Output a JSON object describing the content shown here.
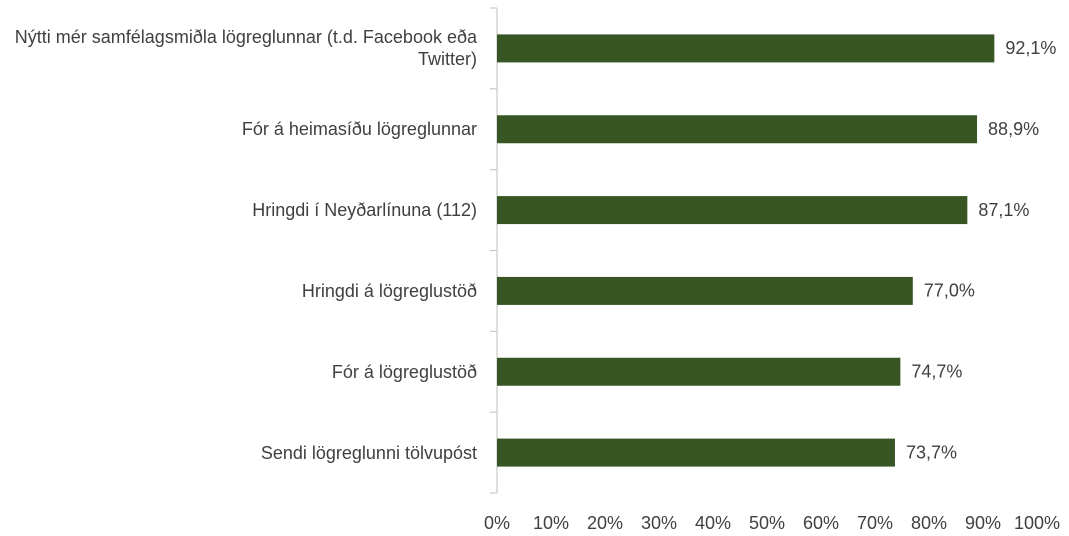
{
  "chart_data": {
    "type": "bar",
    "orientation": "horizontal",
    "categories": [
      "Nýtti mér samfélagsmiðla lögreglunnar (t.d. Facebook eða Twitter)",
      "Fór á heimasíðu lögreglunnar",
      "Hringdi í Neyðarlínuna (112)",
      "Hringdi á lögreglustöð",
      "Fór á lögreglustöð",
      "Sendi lögreglunni tölvupóst"
    ],
    "values": [
      92.1,
      88.9,
      87.1,
      77.0,
      74.7,
      73.7
    ],
    "value_labels": [
      "92,1%",
      "88,9%",
      "87,1%",
      "77,0%",
      "74,7%",
      "73,7%"
    ],
    "color": "#375623",
    "xlim": [
      0,
      100
    ],
    "xticks": [
      {
        "value": 0,
        "label": "0%"
      },
      {
        "value": 10,
        "label": "10%"
      },
      {
        "value": 20,
        "label": "20%"
      },
      {
        "value": 30,
        "label": "30%"
      },
      {
        "value": 40,
        "label": "40%"
      },
      {
        "value": 50,
        "label": "50%"
      },
      {
        "value": 60,
        "label": "60%"
      },
      {
        "value": 70,
        "label": "70%"
      },
      {
        "value": 80,
        "label": "80%"
      },
      {
        "value": 90,
        "label": "90%"
      },
      {
        "value": 100,
        "label": "100%"
      }
    ],
    "grid": false
  }
}
